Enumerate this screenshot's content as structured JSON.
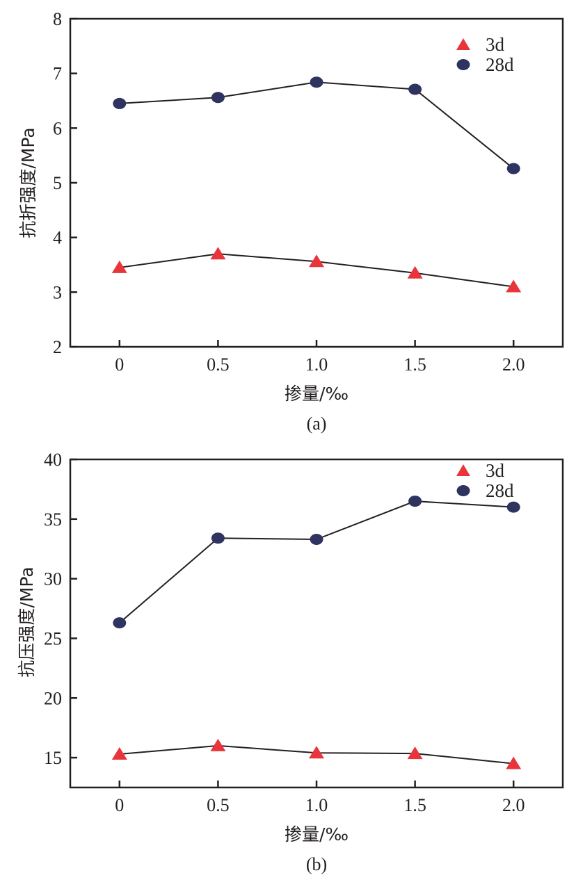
{
  "colors": {
    "series_3d": "#e8343a",
    "series_28d": "#2e3360",
    "axis": "#231f20",
    "line": "#231f20"
  },
  "chart_data": [
    {
      "type": "line",
      "caption": "(a)",
      "xlabel": "掺量/‰",
      "ylabel": "抗折强度/MPa",
      "x": [
        0,
        0.5,
        1.0,
        1.5,
        2.0
      ],
      "x_tick_labels": [
        "0",
        "0.5",
        "1.0",
        "1.5",
        "2.0"
      ],
      "xlim": [
        -0.25,
        2.25
      ],
      "ylim": [
        2,
        8
      ],
      "y_ticks": [
        2,
        3,
        4,
        5,
        6,
        7,
        8
      ],
      "y_tick_labels": [
        "2",
        "3",
        "4",
        "5",
        "6",
        "7",
        "8"
      ],
      "legend_position": "top-right",
      "series": [
        {
          "name": "3d",
          "marker": "triangle",
          "values": [
            3.45,
            3.7,
            3.56,
            3.35,
            3.1
          ]
        },
        {
          "name": "28d",
          "marker": "circle",
          "values": [
            6.45,
            6.56,
            6.84,
            6.71,
            5.26
          ]
        }
      ]
    },
    {
      "type": "line",
      "caption": "(b)",
      "xlabel": "掺量/‰",
      "ylabel": "抗压强度/MPa",
      "x": [
        0,
        0.5,
        1.0,
        1.5,
        2.0
      ],
      "x_tick_labels": [
        "0",
        "0.5",
        "1.0",
        "1.5",
        "2.0"
      ],
      "xlim": [
        -0.25,
        2.25
      ],
      "ylim": [
        12.5,
        40
      ],
      "y_ticks": [
        15,
        20,
        25,
        30,
        35,
        40
      ],
      "y_tick_labels": [
        "15",
        "20",
        "25",
        "30",
        "35",
        "40"
      ],
      "legend_position": "top-right",
      "series": [
        {
          "name": "3d",
          "marker": "triangle",
          "values": [
            15.3,
            16.0,
            15.4,
            15.35,
            14.5
          ]
        },
        {
          "name": "28d",
          "marker": "circle",
          "values": [
            26.3,
            33.4,
            33.3,
            36.5,
            36.0
          ]
        }
      ]
    }
  ]
}
